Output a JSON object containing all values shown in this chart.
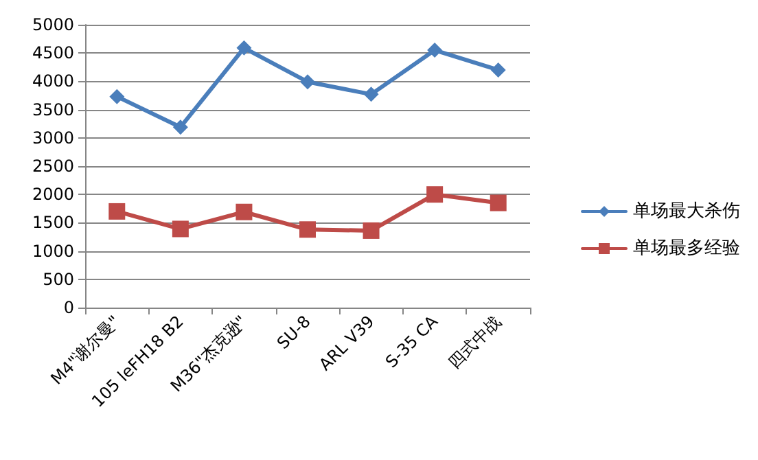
{
  "chart_data": {
    "type": "line",
    "categories": [
      "M4\"谢尔曼\"",
      "105 leFH18 B2",
      "M36\"杰克逊\"",
      "SU-8",
      "ARL V39",
      "S-35 CA",
      "四式中战"
    ],
    "series": [
      {
        "name": "单场最大杀伤",
        "color": "#4a7ebb",
        "marker": "diamond",
        "values": [
          3730,
          3190,
          4590,
          3990,
          3770,
          4550,
          4200
        ]
      },
      {
        "name": "单场最多经验",
        "color": "#be4b48",
        "marker": "square",
        "values": [
          1700,
          1390,
          1690,
          1380,
          1360,
          2000,
          1850
        ]
      }
    ],
    "ylim": [
      0,
      5000
    ],
    "yticks": [
      0,
      500,
      1000,
      1500,
      2000,
      2500,
      3000,
      3500,
      4000,
      4500,
      5000
    ],
    "grid": "y",
    "legend": "right",
    "line_style": "solid"
  }
}
